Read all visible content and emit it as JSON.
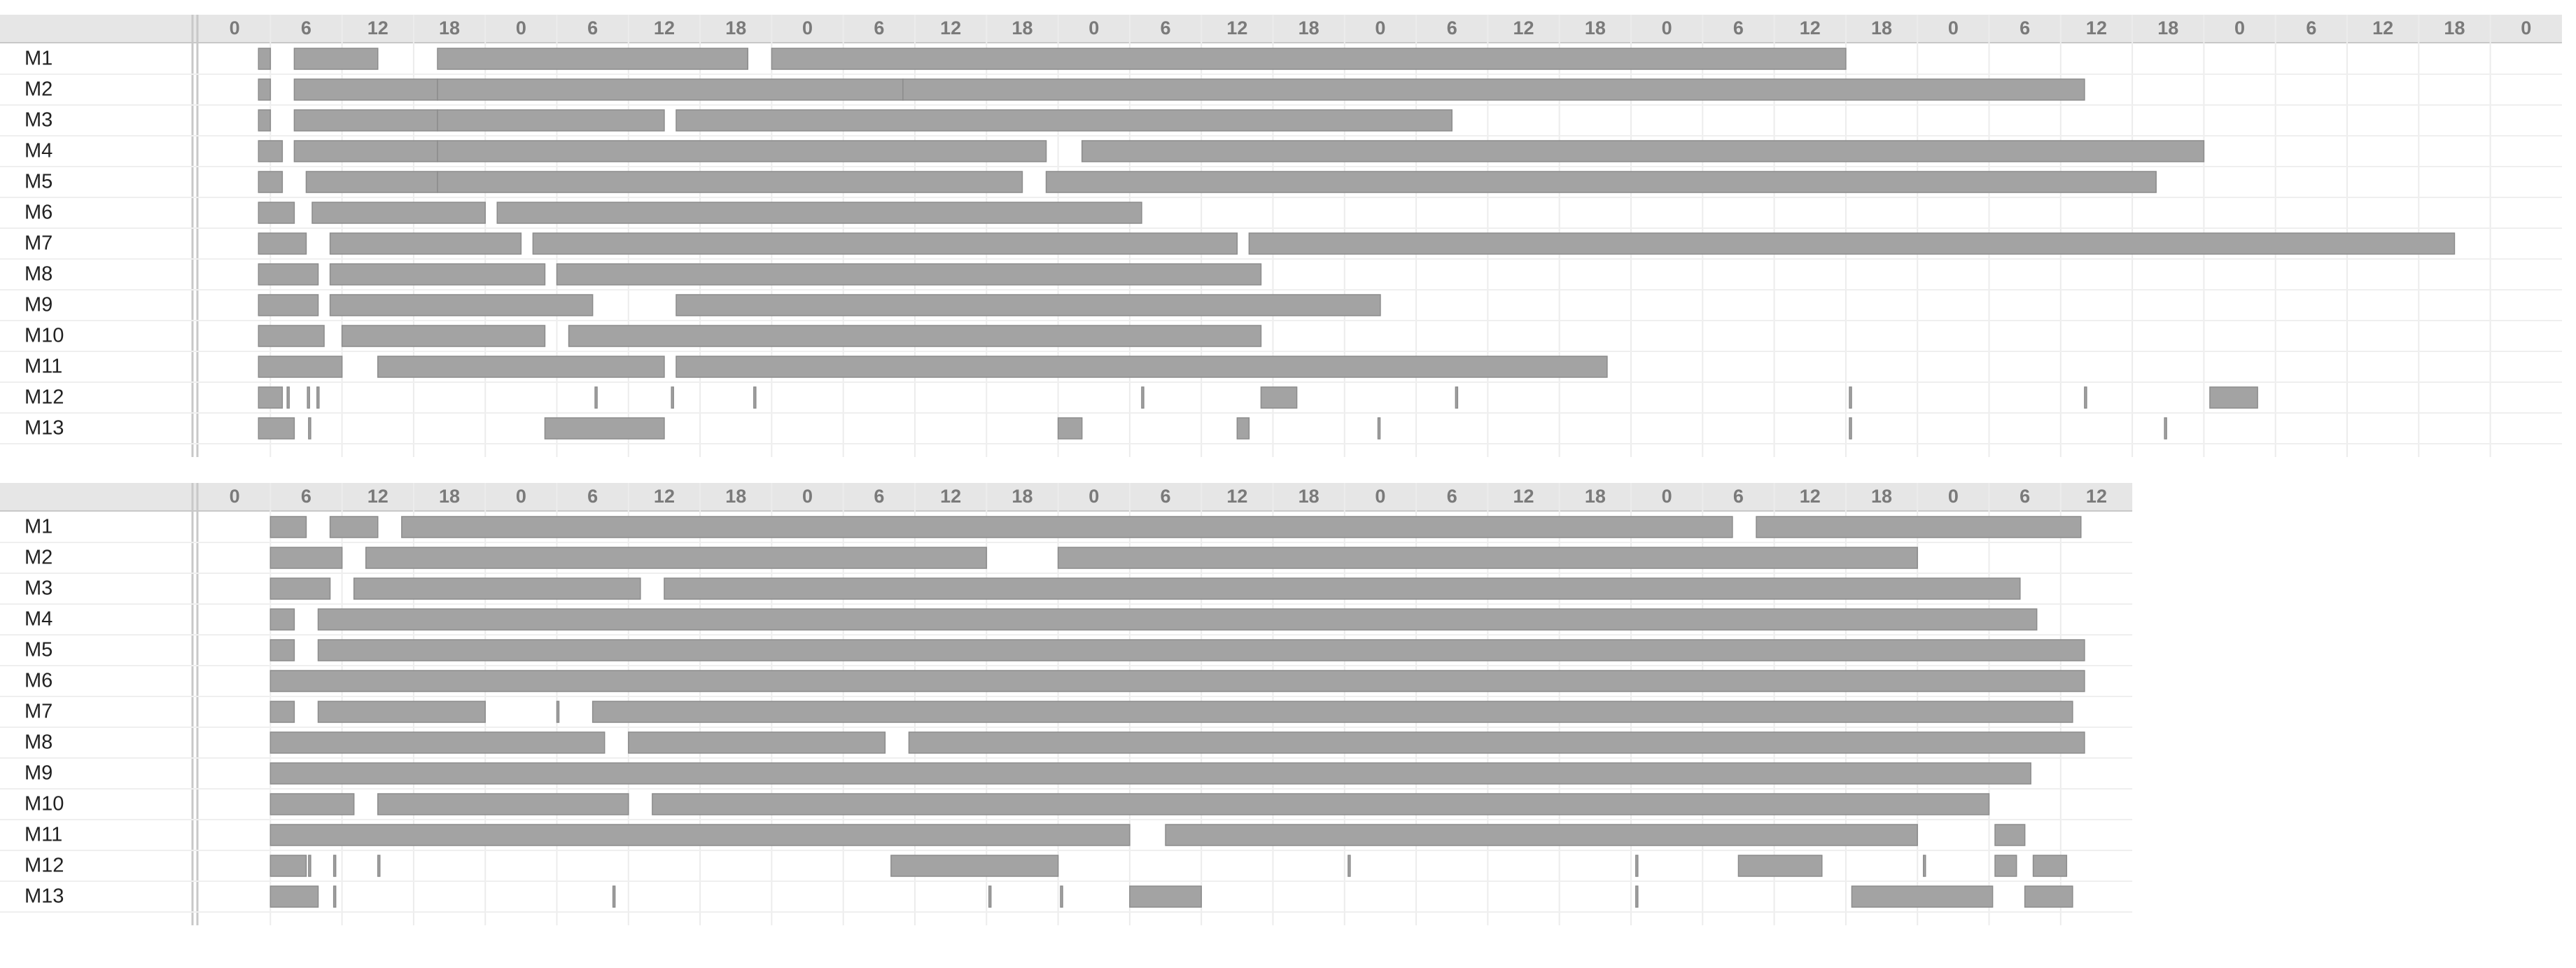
{
  "chart_data": [
    {
      "type": "gantt",
      "categories": [
        "M1",
        "M2",
        "M3",
        "M4",
        "M5",
        "M6",
        "M7",
        "M8",
        "M9",
        "M10",
        "M11",
        "M12",
        "M13"
      ],
      "xlim": [
        0,
        198
      ],
      "xticks": [
        0,
        6,
        12,
        18,
        {
          "value": 24,
          "label": "0"
        },
        {
          "value": 30,
          "label": "6"
        },
        {
          "value": 36,
          "label": "12"
        },
        {
          "value": 42,
          "label": "18"
        },
        {
          "value": 48,
          "label": "0"
        },
        {
          "value": 54,
          "label": "6"
        },
        {
          "value": 60,
          "label": "12"
        },
        {
          "value": 66,
          "label": "18"
        },
        {
          "value": 72,
          "label": "0"
        },
        {
          "value": 78,
          "label": "6"
        },
        {
          "value": 84,
          "label": "12"
        },
        {
          "value": 90,
          "label": "18"
        },
        {
          "value": 96,
          "label": "0"
        },
        {
          "value": 102,
          "label": "6"
        },
        {
          "value": 108,
          "label": "12"
        },
        {
          "value": 114,
          "label": "18"
        },
        {
          "value": 120,
          "label": "0"
        },
        {
          "value": 126,
          "label": "6"
        },
        {
          "value": 132,
          "label": "12"
        },
        {
          "value": 138,
          "label": "18"
        },
        {
          "value": 144,
          "label": "0"
        },
        {
          "value": 150,
          "label": "6"
        },
        {
          "value": 156,
          "label": "12"
        },
        {
          "value": 162,
          "label": "18"
        },
        {
          "value": 168,
          "label": "0"
        },
        {
          "value": 174,
          "label": "6"
        },
        {
          "value": 180,
          "label": "12"
        },
        {
          "value": 186,
          "label": "18"
        },
        {
          "value": 192,
          "label": "0"
        }
      ],
      "color": "#a3a3a3",
      "tasks": [
        [
          [
            5,
            6
          ],
          [
            8,
            15
          ],
          [
            20,
            46
          ],
          [
            48,
            138
          ]
        ],
        [
          [
            5,
            6
          ],
          [
            8,
            20
          ],
          [
            20,
            59
          ],
          [
            59,
            158
          ]
        ],
        [
          [
            5,
            6
          ],
          [
            8,
            20
          ],
          [
            20,
            39
          ],
          [
            40,
            105
          ]
        ],
        [
          [
            5,
            7
          ],
          [
            8,
            20
          ],
          [
            20,
            71
          ],
          [
            74,
            168
          ]
        ],
        [
          [
            5,
            7
          ],
          [
            9,
            20
          ],
          [
            20,
            69
          ],
          [
            71,
            164
          ]
        ],
        [
          [
            5,
            8
          ],
          [
            9.5,
            24
          ],
          [
            25,
            79
          ]
        ],
        [
          [
            5,
            9
          ],
          [
            11,
            27
          ],
          [
            28,
            87
          ],
          [
            88,
            189
          ]
        ],
        [
          [
            5,
            10
          ],
          [
            11,
            29
          ],
          [
            30,
            89
          ]
        ],
        [
          [
            5,
            10
          ],
          [
            11,
            33
          ],
          [
            40,
            99
          ]
        ],
        [
          [
            5,
            10.5
          ],
          [
            12,
            29
          ],
          [
            31,
            89
          ]
        ],
        [
          [
            5,
            12
          ],
          [
            15,
            39
          ],
          [
            40,
            118
          ]
        ],
        [
          [
            5,
            7
          ],
          [
            7.4,
            7.4
          ],
          [
            9.1,
            9.1
          ],
          [
            9.9,
            9.9
          ],
          [
            33.2,
            33.2
          ],
          [
            39.6,
            39.6
          ],
          [
            46.5,
            46.5
          ],
          [
            79,
            79
          ],
          [
            89,
            92
          ],
          [
            105.3,
            105.3
          ],
          [
            138.3,
            138.3
          ],
          [
            158,
            158
          ],
          [
            168.5,
            172.5
          ]
        ],
        [
          [
            5,
            8
          ],
          [
            9.2,
            9.2
          ],
          [
            29,
            39
          ],
          [
            72,
            74
          ],
          [
            87,
            88
          ],
          [
            98.8,
            98.8
          ],
          [
            138.3,
            138.3
          ],
          [
            164.7,
            164.7
          ]
        ]
      ]
    },
    {
      "type": "gantt",
      "categories": [
        "M1",
        "M2",
        "M3",
        "M4",
        "M5",
        "M6",
        "M7",
        "M8",
        "M9",
        "M10",
        "M11",
        "M12",
        "M13"
      ],
      "xlim": [
        0,
        162
      ],
      "xticks": [
        0,
        6,
        12,
        18,
        {
          "value": 24,
          "label": "0"
        },
        {
          "value": 30,
          "label": "6"
        },
        {
          "value": 36,
          "label": "12"
        },
        {
          "value": 42,
          "label": "18"
        },
        {
          "value": 48,
          "label": "0"
        },
        {
          "value": 54,
          "label": "6"
        },
        {
          "value": 60,
          "label": "12"
        },
        {
          "value": 66,
          "label": "18"
        },
        {
          "value": 72,
          "label": "0"
        },
        {
          "value": 78,
          "label": "6"
        },
        {
          "value": 84,
          "label": "12"
        },
        {
          "value": 90,
          "label": "18"
        },
        {
          "value": 96,
          "label": "0"
        },
        {
          "value": 102,
          "label": "6"
        },
        {
          "value": 108,
          "label": "12"
        },
        {
          "value": 114,
          "label": "18"
        },
        {
          "value": 120,
          "label": "0"
        },
        {
          "value": 126,
          "label": "6"
        },
        {
          "value": 132,
          "label": "12"
        },
        {
          "value": 138,
          "label": "18"
        },
        {
          "value": 144,
          "label": "0"
        },
        {
          "value": 150,
          "label": "6"
        },
        {
          "value": 156,
          "label": "12"
        }
      ],
      "color": "#a3a3a3",
      "tasks": [
        [
          [
            6,
            9
          ],
          [
            11,
            15
          ],
          [
            17,
            128.5
          ],
          [
            130.5,
            157.7
          ]
        ],
        [
          [
            6,
            12
          ],
          [
            14,
            66
          ],
          [
            72,
            144
          ]
        ],
        [
          [
            6,
            11
          ],
          [
            13,
            37
          ],
          [
            39,
            152.6
          ]
        ],
        [
          [
            6,
            8
          ],
          [
            10,
            154
          ]
        ],
        [
          [
            6,
            8
          ],
          [
            10,
            158
          ]
        ],
        [
          [
            6,
            158
          ]
        ],
        [
          [
            6,
            8
          ],
          [
            10,
            24
          ],
          [
            30,
            30
          ],
          [
            33,
            157
          ]
        ],
        [
          [
            6,
            34
          ],
          [
            36,
            57.5
          ],
          [
            59.5,
            158
          ]
        ],
        [
          [
            6,
            153.5
          ]
        ],
        [
          [
            6,
            13
          ],
          [
            15,
            36
          ],
          [
            38,
            150
          ]
        ],
        [
          [
            6,
            78
          ],
          [
            81,
            144
          ],
          [
            150.5,
            153
          ]
        ],
        [
          [
            6,
            9
          ],
          [
            9.2,
            9.2
          ],
          [
            11.3,
            11.3
          ],
          [
            15,
            15
          ],
          [
            58,
            72
          ],
          [
            96.3,
            96.3
          ],
          [
            120.4,
            120.4
          ],
          [
            129,
            136
          ],
          [
            144.5,
            144.5
          ],
          [
            150.5,
            152.3
          ],
          [
            153.7,
            156.5
          ]
        ],
        [
          [
            6,
            10
          ],
          [
            11.3,
            11.3
          ],
          [
            34.7,
            34.7
          ],
          [
            66.2,
            66.2
          ],
          [
            72.2,
            72.2
          ],
          [
            78,
            84
          ],
          [
            120.4,
            120.4
          ],
          [
            138.5,
            150.3
          ],
          [
            153,
            157
          ]
        ]
      ]
    }
  ]
}
